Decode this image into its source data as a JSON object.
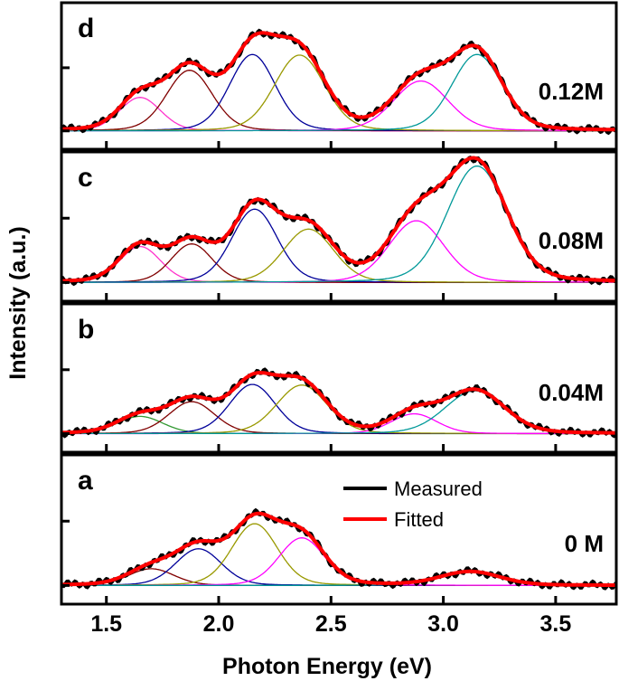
{
  "chart_data": {
    "type": "line",
    "xlabel": "Photon Energy (eV)",
    "ylabel": "Intensity (a.u.)",
    "xlim": [
      1.3,
      3.77
    ],
    "xticks": [
      "1.5",
      "2.0",
      "2.5",
      "3.0",
      "3.5"
    ],
    "xtick_values": [
      1.5,
      2.0,
      2.5,
      3.0,
      3.5
    ],
    "ylim": [
      -0.29,
      2.03
    ],
    "grid": false,
    "legend": {
      "placement": "inside panel a, top-center",
      "entries": [
        {
          "name": "Measured",
          "color": "#000000"
        },
        {
          "name": "Fitted",
          "color": "#ff0000"
        }
      ]
    },
    "panels": [
      {
        "letter": "d",
        "label": "0.12M",
        "components": [
          {
            "center": 1.65,
            "amp": 0.53,
            "sigma": 0.09,
            "color": "#ff33cc"
          },
          {
            "center": 1.87,
            "amp": 0.96,
            "sigma": 0.1,
            "color": "#800000"
          },
          {
            "center": 2.15,
            "amp": 1.21,
            "sigma": 0.1,
            "color": "#000099"
          },
          {
            "center": 2.36,
            "amp": 1.2,
            "sigma": 0.11,
            "color": "#999900"
          },
          {
            "center": 2.9,
            "amp": 0.79,
            "sigma": 0.12,
            "color": "#ff00ff"
          },
          {
            "center": 3.15,
            "amp": 1.21,
            "sigma": 0.11,
            "color": "#009999"
          }
        ]
      },
      {
        "letter": "c",
        "label": "0.08M",
        "components": [
          {
            "center": 1.65,
            "amp": 0.56,
            "sigma": 0.09,
            "color": "#ff33cc"
          },
          {
            "center": 1.88,
            "amp": 0.6,
            "sigma": 0.09,
            "color": "#800000"
          },
          {
            "center": 2.16,
            "amp": 1.14,
            "sigma": 0.1,
            "color": "#000099"
          },
          {
            "center": 2.4,
            "amp": 0.83,
            "sigma": 0.11,
            "color": "#999900"
          },
          {
            "center": 2.88,
            "amp": 0.96,
            "sigma": 0.12,
            "color": "#ff00ff"
          },
          {
            "center": 3.15,
            "amp": 1.81,
            "sigma": 0.13,
            "color": "#009999"
          }
        ]
      },
      {
        "letter": "b",
        "label": "0.04M",
        "components": [
          {
            "center": 1.65,
            "amp": 0.27,
            "sigma": 0.1,
            "color": "#339933"
          },
          {
            "center": 1.88,
            "amp": 0.5,
            "sigma": 0.1,
            "color": "#800000"
          },
          {
            "center": 2.15,
            "amp": 0.77,
            "sigma": 0.1,
            "color": "#000099"
          },
          {
            "center": 2.37,
            "amp": 0.76,
            "sigma": 0.11,
            "color": "#999900"
          },
          {
            "center": 2.87,
            "amp": 0.31,
            "sigma": 0.1,
            "color": "#ff00ff"
          },
          {
            "center": 3.14,
            "amp": 0.67,
            "sigma": 0.13,
            "color": "#009999"
          }
        ]
      },
      {
        "letter": "a",
        "label": "0 M",
        "components": [
          {
            "center": 1.7,
            "amp": 0.26,
            "sigma": 0.1,
            "color": "#800000"
          },
          {
            "center": 1.91,
            "amp": 0.57,
            "sigma": 0.1,
            "color": "#000099"
          },
          {
            "center": 2.16,
            "amp": 0.96,
            "sigma": 0.1,
            "color": "#999900"
          },
          {
            "center": 2.37,
            "amp": 0.74,
            "sigma": 0.1,
            "color": "#ff00ff"
          },
          {
            "center": 3.12,
            "amp": 0.21,
            "sigma": 0.13,
            "color": "#009999"
          }
        ]
      }
    ]
  }
}
